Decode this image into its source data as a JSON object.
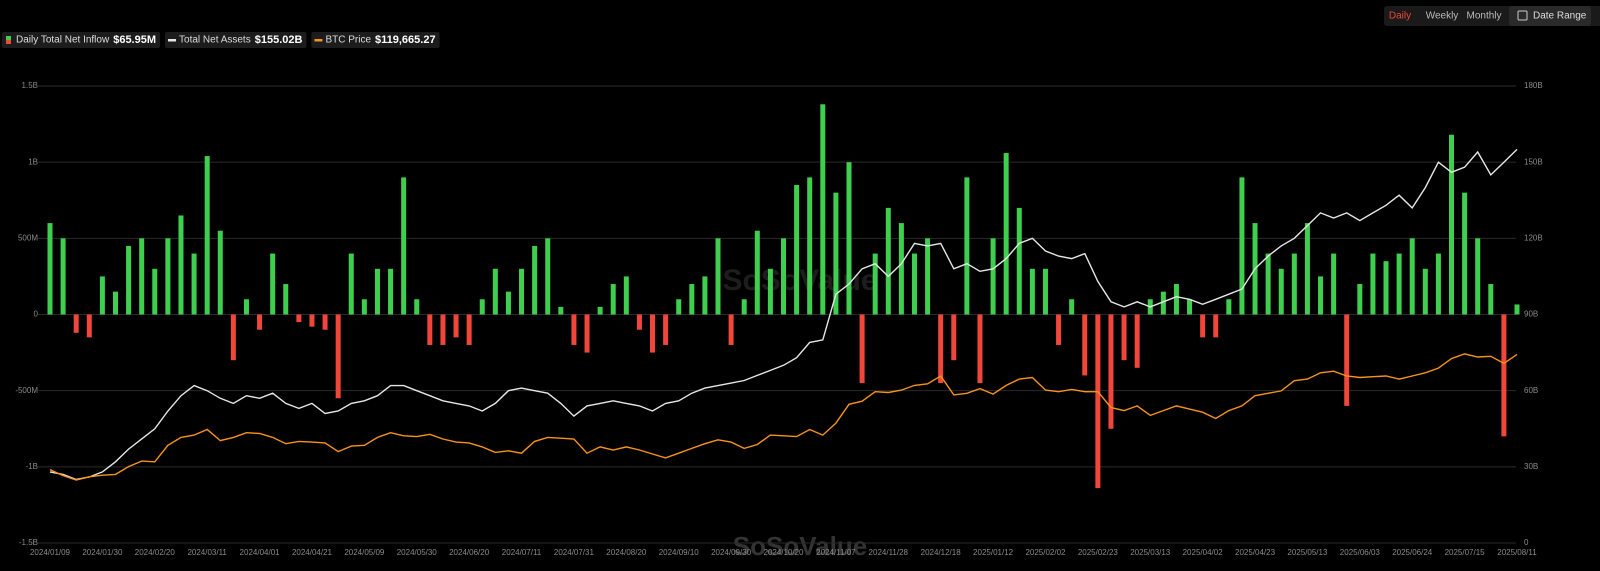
{
  "controls": {
    "periods": [
      "Daily",
      "Weekly",
      "Monthly"
    ],
    "active": "Daily",
    "date_range": "Date Range"
  },
  "watermark": "SoSoValue",
  "chart_data": {
    "type": "combo",
    "categories": [
      "2024/01/09",
      null,
      null,
      null,
      "2024/01/30",
      null,
      null,
      null,
      "2024/02/20",
      null,
      null,
      null,
      "2024/03/11",
      null,
      null,
      null,
      "2024/04/01",
      null,
      null,
      null,
      "2024/04/21",
      null,
      null,
      null,
      "2024/05/09",
      null,
      null,
      null,
      "2024/05/30",
      null,
      null,
      null,
      "2024/06/20",
      null,
      null,
      null,
      "2024/07/11",
      null,
      null,
      null,
      "2024/07/31",
      null,
      null,
      null,
      "2024/08/20",
      null,
      null,
      null,
      "2024/09/10",
      null,
      null,
      null,
      "2024/09/30",
      null,
      null,
      null,
      "2024/10/20",
      null,
      null,
      null,
      "2024/11/07",
      null,
      null,
      null,
      "2024/11/28",
      null,
      null,
      null,
      "2024/12/18",
      null,
      null,
      null,
      "2025/01/12",
      null,
      null,
      null,
      "2025/02/02",
      null,
      null,
      null,
      "2025/02/23",
      null,
      null,
      null,
      "2025/03/13",
      null,
      null,
      null,
      "2025/04/02",
      null,
      null,
      null,
      "2025/04/23",
      null,
      null,
      null,
      "2025/05/13",
      null,
      null,
      null,
      "2025/06/03",
      null,
      null,
      null,
      "2025/06/24",
      null,
      null,
      null,
      "2025/07/15",
      null,
      null,
      null,
      "2025/08/11"
    ],
    "series": [
      {
        "name": "Daily Total Net Inflow",
        "latest_label": "$65.95M",
        "type": "bar",
        "axis": "y",
        "color": "#3fcf4f",
        "negative_color": "#f0473a",
        "values": [
          0.6,
          0.5,
          -0.12,
          -0.15,
          0.25,
          0.15,
          0.45,
          0.5,
          0.3,
          0.5,
          0.65,
          0.4,
          1.04,
          0.55,
          -0.3,
          0.1,
          -0.1,
          0.4,
          0.2,
          -0.05,
          -0.08,
          -0.1,
          -0.55,
          0.4,
          0.1,
          0.3,
          0.3,
          0.9,
          0.1,
          -0.2,
          -0.2,
          -0.15,
          -0.2,
          0.1,
          0.3,
          0.15,
          0.3,
          0.45,
          0.5,
          0.05,
          -0.2,
          -0.25,
          0.05,
          0.2,
          0.25,
          -0.1,
          -0.25,
          -0.2,
          0.1,
          0.2,
          0.25,
          0.5,
          -0.2,
          0.1,
          0.55,
          0.3,
          0.5,
          0.85,
          0.9,
          1.38,
          0.8,
          1.0,
          -0.45,
          0.4,
          0.7,
          0.6,
          0.4,
          0.5,
          -0.45,
          -0.3,
          0.9,
          -0.45,
          0.5,
          1.06,
          0.7,
          0.3,
          0.3,
          -0.2,
          0.1,
          -0.4,
          -1.14,
          -0.75,
          -0.3,
          -0.35,
          0.1,
          0.15,
          0.2,
          0.1,
          -0.15,
          -0.15,
          0.1,
          0.9,
          0.6,
          0.4,
          0.3,
          0.4,
          0.6,
          0.25,
          0.4,
          -0.6,
          0.2,
          0.4,
          0.35,
          0.4,
          0.5,
          0.3,
          0.4,
          1.18,
          0.8,
          0.5,
          0.2,
          -0.8,
          0.06595
        ]
      },
      {
        "name": "Total Net Assets",
        "latest_label": "$155.02B",
        "type": "line",
        "axis": "y2",
        "color": "#e6e6e6",
        "values": [
          28,
          27,
          25,
          26,
          28,
          32,
          37,
          41,
          45,
          52,
          58,
          62,
          60,
          57,
          55,
          58,
          57,
          59,
          55,
          53,
          55,
          51,
          52,
          55,
          56,
          58,
          62,
          62,
          60,
          58,
          56,
          55,
          54,
          52,
          55,
          60,
          61,
          60,
          59,
          55,
          50,
          54,
          55,
          56,
          55,
          54,
          52,
          55,
          56,
          59,
          61,
          62,
          63,
          64,
          66,
          68,
          70,
          73,
          79,
          80,
          98,
          102,
          108,
          110,
          105,
          110,
          118,
          117,
          118,
          108,
          110,
          107,
          108,
          112,
          118,
          120,
          115,
          113,
          112,
          114,
          103,
          95,
          93,
          95,
          93,
          95,
          97,
          96,
          94,
          96,
          98,
          100,
          108,
          113,
          117,
          120,
          125,
          130,
          128,
          130,
          127,
          130,
          133,
          137,
          132,
          140,
          150,
          146,
          148,
          154,
          145,
          150,
          155.02
        ]
      },
      {
        "name": "BTC Price",
        "latest_label": "$119,665.27",
        "type": "line",
        "axis": "y3",
        "color": "#f7931a",
        "values": [
          46500,
          42800,
          40000,
          42000,
          43000,
          43500,
          48500,
          52000,
          51500,
          62000,
          67000,
          68500,
          72000,
          65000,
          67000,
          70000,
          69500,
          67000,
          63000,
          64500,
          64000,
          63500,
          58000,
          61500,
          62000,
          67000,
          70000,
          68000,
          67500,
          69000,
          66000,
          64000,
          63500,
          61000,
          57500,
          58500,
          57000,
          64500,
          67000,
          66500,
          66000,
          57000,
          61000,
          59000,
          61000,
          59000,
          56500,
          54000,
          57000,
          60000,
          63000,
          65500,
          64000,
          60000,
          62500,
          68500,
          68000,
          67500,
          72000,
          68500,
          76000,
          88000,
          90000,
          96000,
          95500,
          97000,
          100000,
          101000,
          106000,
          94000,
          95000,
          98000,
          94500,
          100000,
          104000,
          105000,
          97000,
          96000,
          97500,
          96000,
          96000,
          86000,
          84000,
          87000,
          81000,
          84000,
          87000,
          85000,
          83000,
          79000,
          84000,
          87000,
          93500,
          95000,
          96500,
          103000,
          104000,
          108000,
          109000,
          106000,
          105000,
          105500,
          106000,
          104000,
          106000,
          108000,
          111000,
          117000,
          120000,
          118000,
          118500,
          114000,
          119665.27
        ]
      }
    ],
    "ylim": [
      -1.5,
      1.5
    ],
    "yticks": [
      {
        "value": -1.5,
        "label": "-1.5B"
      },
      {
        "value": -1,
        "label": "-1B"
      },
      {
        "value": -0.5,
        "label": "-500M"
      },
      0,
      {
        "value": 0.5,
        "label": "500M"
      },
      {
        "value": 1,
        "label": "1B"
      },
      {
        "value": 1.5,
        "label": "1.5B"
      }
    ],
    "y2lim": [
      0,
      180
    ],
    "y2ticks": [
      0,
      {
        "value": 30,
        "label": "30B"
      },
      {
        "value": 60,
        "label": "60B"
      },
      {
        "value": 90,
        "label": "90B"
      },
      {
        "value": 120,
        "label": "120B"
      },
      {
        "value": 150,
        "label": "150B"
      },
      {
        "value": 180,
        "label": "180B"
      }
    ],
    "y3lim": [
      0,
      290000
    ],
    "grid": true
  }
}
